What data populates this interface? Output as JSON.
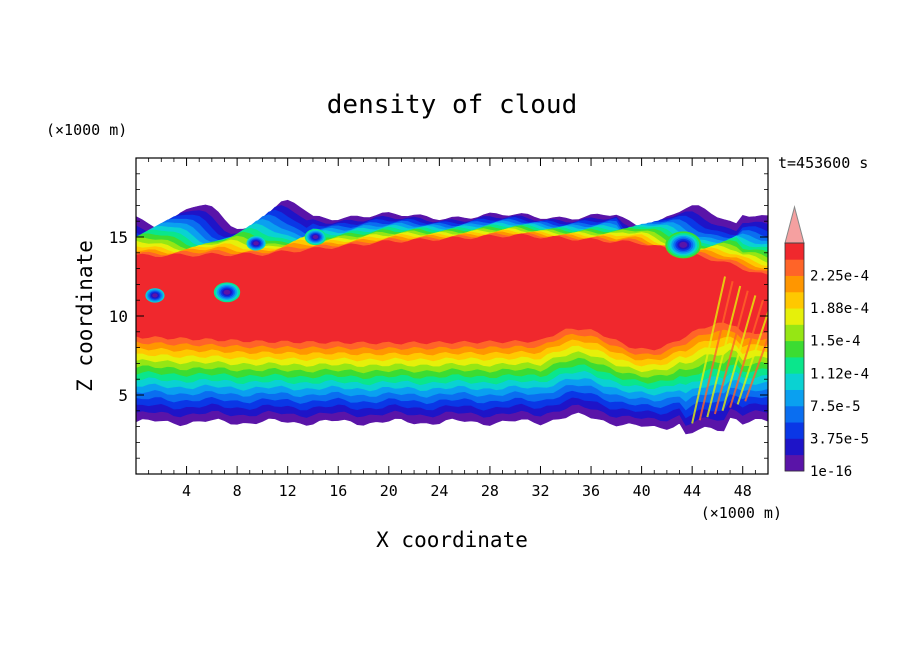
{
  "chart_data": {
    "type": "heatmap",
    "title": "density of cloud",
    "xlabel": "X coordinate",
    "ylabel": "Z coordinate",
    "x_unit": "(×1000 m)",
    "y_unit": "(×1000 m)",
    "time_label": "t=453600 s",
    "xlim": [
      0,
      50
    ],
    "ylim": [
      0,
      20
    ],
    "x_ticks": [
      4,
      8,
      12,
      16,
      20,
      24,
      28,
      32,
      36,
      40,
      44,
      48
    ],
    "y_ticks": [
      5,
      10,
      15
    ],
    "grid": false,
    "colorbar": {
      "labels": [
        "2.25e-4",
        "1.88e-4",
        "1.5e-4",
        "1.12e-4",
        "7.5e-5",
        "3.75e-5",
        "1e-16"
      ],
      "label_values": [
        0.000225,
        0.000188,
        0.00015,
        0.000112,
        7.5e-05,
        3.75e-05,
        0
      ],
      "levels": [
        0,
        1.875e-05,
        3.75e-05,
        5.625e-05,
        7.5e-05,
        9.375e-05,
        0.000112,
        0.00013125,
        0.00015,
        0.00016875,
        0.000188,
        0.00020625,
        0.000225,
        0.00024375
      ],
      "colors": [
        "#5a14a8",
        "#1e14c8",
        "#0a37e6",
        "#0a6ef0",
        "#0aa0f0",
        "#0ad2d2",
        "#0ae68c",
        "#3cdc32",
        "#96e614",
        "#e6f00a",
        "#ffc800",
        "#ff9600",
        "#ff6428",
        "#f0282d"
      ],
      "extend_color": "#f5a0a0",
      "extend_outline": "#888888"
    },
    "cloud_band": {
      "x_range": [
        0,
        50
      ],
      "top_z": 16.3,
      "base_z": 3.3,
      "core_z": [
        8.5,
        14.5
      ],
      "core_value": 0.00024,
      "description_points": [
        {
          "x": 0,
          "z_core_top": 13.8,
          "z_core_bottom": 8.7
        },
        {
          "x": 10,
          "z_core_top": 13.9,
          "z_core_bottom": 8.4
        },
        {
          "x": 20,
          "z_core_top": 14.7,
          "z_core_bottom": 8.3
        },
        {
          "x": 30,
          "z_core_top": 15.1,
          "z_core_bottom": 8.4
        },
        {
          "x": 40,
          "z_core_top": 14.6,
          "z_core_bottom": 8.6
        },
        {
          "x": 46,
          "z_core_top": 13.5,
          "z_core_bottom": 8.8
        },
        {
          "x": 50,
          "z_core_top": 12.5,
          "z_core_bottom": 9.0
        }
      ]
    }
  }
}
